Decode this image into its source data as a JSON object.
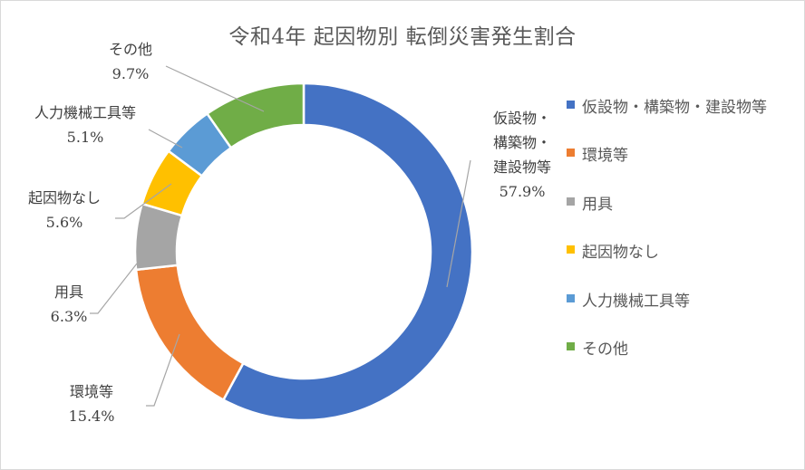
{
  "chart_data": {
    "type": "pie",
    "donut": true,
    "title": "令和4年 起因物別 転倒災害発生割合",
    "legend_position": "right",
    "slices": [
      {
        "name": "仮設物・構築物・建設物等",
        "label_lines": [
          "仮設物・",
          "構築物・",
          "建設物等"
        ],
        "value": 57.9,
        "value_label": "57.9%",
        "color": "#4472c4"
      },
      {
        "name": "環境等",
        "label_lines": [
          "環境等"
        ],
        "value": 15.4,
        "value_label": "15.4%",
        "color": "#ed7d31"
      },
      {
        "name": "用具",
        "label_lines": [
          "用具"
        ],
        "value": 6.3,
        "value_label": "6.3%",
        "color": "#a5a5a5"
      },
      {
        "name": "起因物なし",
        "label_lines": [
          "起因物なし"
        ],
        "value": 5.6,
        "value_label": "5.6%",
        "color": "#ffc000"
      },
      {
        "name": "人力機械工具等",
        "label_lines": [
          "人力機械工具等"
        ],
        "value": 5.1,
        "value_label": "5.1%",
        "color": "#5b9bd5"
      },
      {
        "name": "その他",
        "label_lines": [
          "その他"
        ],
        "value": 9.7,
        "value_label": "9.7%",
        "color": "#70ad47"
      }
    ]
  }
}
